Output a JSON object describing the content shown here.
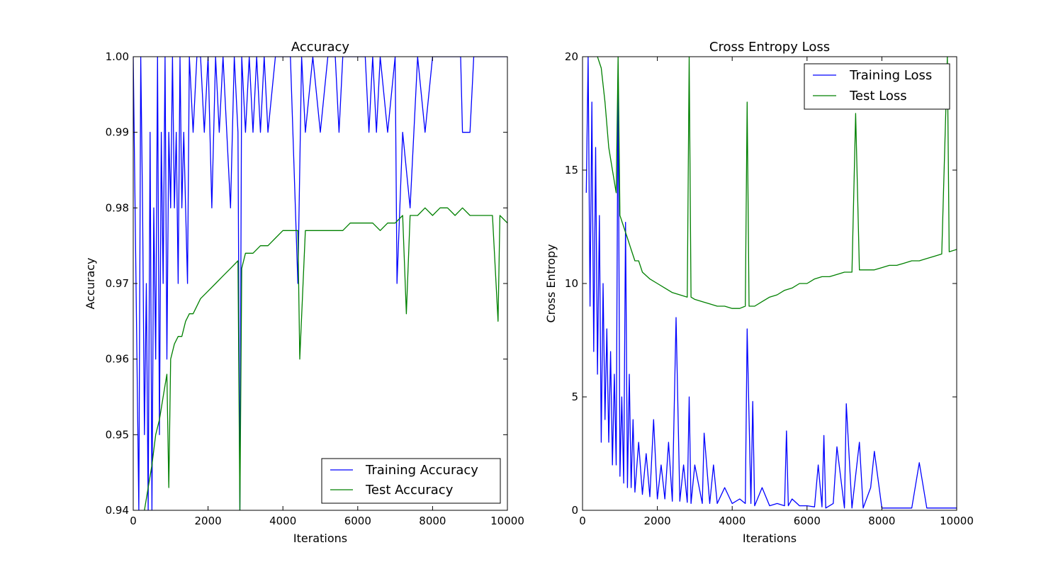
{
  "chart_data": [
    {
      "type": "line",
      "title": "Accuracy",
      "xlabel": "Iterations",
      "ylabel": "Accuracy",
      "xlim": [
        0,
        10000
      ],
      "ylim": [
        0.94,
        1.0
      ],
      "x_ticks": [
        "0",
        "2000",
        "4000",
        "6000",
        "8000",
        "10000"
      ],
      "y_ticks": [
        "0.94",
        "0.95",
        "0.96",
        "0.97",
        "0.98",
        "0.99",
        "1.00"
      ],
      "grid": false,
      "legend_position": "lower-right",
      "series": [
        {
          "name": "Training Accuracy",
          "color": "#0000ff",
          "x": [
            0,
            150,
            200,
            250,
            300,
            350,
            400,
            450,
            500,
            550,
            600,
            650,
            700,
            750,
            800,
            850,
            900,
            950,
            1000,
            1050,
            1100,
            1150,
            1200,
            1250,
            1300,
            1350,
            1400,
            1450,
            1500,
            1600,
            1700,
            1800,
            1900,
            2000,
            2100,
            2200,
            2300,
            2400,
            2500,
            2600,
            2700,
            2800,
            2850,
            2900,
            3000,
            3100,
            3200,
            3300,
            3400,
            3500,
            3600,
            3800,
            4000,
            4200,
            4400,
            4500,
            4600,
            4800,
            5000,
            5200,
            5400,
            5500,
            5600,
            5800,
            6000,
            6200,
            6300,
            6400,
            6500,
            6600,
            6800,
            7000,
            7050,
            7200,
            7400,
            7600,
            7800,
            8000,
            8200,
            8400,
            8600,
            8750,
            8800,
            9000,
            9100,
            9300,
            9500,
            9700,
            10000
          ],
          "y": [
            1.0,
            0.94,
            1.0,
            0.98,
            0.95,
            0.97,
            0.94,
            0.99,
            0.94,
            0.98,
            0.96,
            1.0,
            0.95,
            0.99,
            0.97,
            1.0,
            0.96,
            0.99,
            0.98,
            1.0,
            0.98,
            0.99,
            0.97,
            1.0,
            0.98,
            0.99,
            0.98,
            0.97,
            1.0,
            0.99,
            1.0,
            1.0,
            0.99,
            1.0,
            0.98,
            1.0,
            0.99,
            1.0,
            0.99,
            0.98,
            1.0,
            0.99,
            0.94,
            1.0,
            0.99,
            1.0,
            0.99,
            1.0,
            0.99,
            1.0,
            0.99,
            1.0,
            1.0,
            1.0,
            0.97,
            1.0,
            0.99,
            1.0,
            0.99,
            1.0,
            1.0,
            0.99,
            1.0,
            1.0,
            1.0,
            1.0,
            0.99,
            1.0,
            0.99,
            1.0,
            0.99,
            1.0,
            0.97,
            0.99,
            0.98,
            1.0,
            0.99,
            1.0,
            1.0,
            1.0,
            1.0,
            1.0,
            0.99,
            0.99,
            1.0,
            1.0,
            1.0,
            1.0,
            1.0
          ]
        },
        {
          "name": "Test Accuracy",
          "color": "#008000",
          "x": [
            300,
            400,
            500,
            600,
            700,
            800,
            900,
            950,
            1000,
            1100,
            1200,
            1300,
            1400,
            1500,
            1600,
            1800,
            2000,
            2200,
            2400,
            2600,
            2800,
            2850,
            2900,
            3000,
            3200,
            3400,
            3600,
            3800,
            4000,
            4200,
            4400,
            4450,
            4600,
            4800,
            5000,
            5200,
            5400,
            5600,
            5800,
            6000,
            6200,
            6400,
            6600,
            6800,
            7000,
            7200,
            7300,
            7400,
            7600,
            7800,
            8000,
            8200,
            8400,
            8600,
            8800,
            9000,
            9200,
            9400,
            9600,
            9750,
            9800,
            10000
          ],
          "y": [
            0.94,
            0.943,
            0.946,
            0.95,
            0.952,
            0.955,
            0.958,
            0.943,
            0.96,
            0.962,
            0.963,
            0.963,
            0.965,
            0.966,
            0.966,
            0.968,
            0.969,
            0.97,
            0.971,
            0.972,
            0.973,
            0.94,
            0.972,
            0.974,
            0.974,
            0.975,
            0.975,
            0.976,
            0.977,
            0.977,
            0.977,
            0.96,
            0.977,
            0.977,
            0.977,
            0.977,
            0.977,
            0.977,
            0.978,
            0.978,
            0.978,
            0.978,
            0.977,
            0.978,
            0.978,
            0.979,
            0.966,
            0.979,
            0.979,
            0.98,
            0.979,
            0.98,
            0.98,
            0.979,
            0.98,
            0.979,
            0.979,
            0.979,
            0.979,
            0.965,
            0.979,
            0.978
          ]
        }
      ]
    },
    {
      "type": "line",
      "title": "Cross Entropy Loss",
      "xlabel": "Iterations",
      "ylabel": "Cross Entropy",
      "xlim": [
        0,
        10000
      ],
      "ylim": [
        0,
        20
      ],
      "x_ticks": [
        "0",
        "2000",
        "4000",
        "6000",
        "8000",
        "10000"
      ],
      "y_ticks": [
        "0",
        "5",
        "10",
        "15",
        "20"
      ],
      "grid": false,
      "legend_position": "upper-right",
      "series": [
        {
          "name": "Training Loss",
          "color": "#0000ff",
          "x": [
            100,
            150,
            200,
            250,
            300,
            350,
            400,
            450,
            500,
            550,
            600,
            650,
            700,
            750,
            800,
            850,
            900,
            950,
            1000,
            1050,
            1100,
            1150,
            1200,
            1250,
            1300,
            1350,
            1400,
            1500,
            1600,
            1700,
            1800,
            1900,
            2000,
            2100,
            2200,
            2300,
            2400,
            2500,
            2600,
            2700,
            2800,
            2850,
            2900,
            3000,
            3200,
            3250,
            3400,
            3500,
            3600,
            3800,
            4000,
            4200,
            4350,
            4400,
            4500,
            4550,
            4600,
            4800,
            5000,
            5200,
            5400,
            5450,
            5500,
            5600,
            5800,
            6000,
            6200,
            6300,
            6400,
            6450,
            6500,
            6700,
            6800,
            7000,
            7050,
            7200,
            7400,
            7500,
            7700,
            7800,
            8000,
            8200,
            8400,
            8600,
            8800,
            9000,
            9200,
            9400,
            9600,
            9800,
            10000
          ],
          "y": [
            14,
            20,
            9,
            18,
            7,
            16,
            6,
            13,
            3,
            10,
            4,
            8,
            3,
            7,
            2,
            6,
            2,
            19.6,
            1.5,
            5,
            1.2,
            12.7,
            1.0,
            6,
            1.0,
            4,
            0.8,
            3,
            0.7,
            2.5,
            0.6,
            4,
            0.5,
            2,
            0.5,
            3,
            0.4,
            8.5,
            0.4,
            2,
            0.35,
            5,
            0.3,
            2,
            0.3,
            3.4,
            0.3,
            2,
            0.3,
            1,
            0.3,
            0.5,
            0.3,
            8.0,
            0.3,
            4.8,
            0.2,
            1,
            0.2,
            0.3,
            0.2,
            3.5,
            0.2,
            0.5,
            0.2,
            0.2,
            0.15,
            2,
            0.15,
            3.3,
            0.1,
            0.3,
            2.8,
            0.1,
            4.7,
            0.1,
            3,
            0.1,
            1,
            2.6,
            0.1,
            0.1,
            0.1,
            0.1,
            0.1,
            2.1,
            0.1,
            0.1,
            0.1,
            0.1,
            0.1
          ]
        },
        {
          "name": "Test Loss",
          "color": "#008000",
          "x": [
            400,
            500,
            600,
            700,
            800,
            900,
            950,
            1000,
            1100,
            1200,
            1300,
            1400,
            1500,
            1600,
            1800,
            2000,
            2200,
            2400,
            2600,
            2800,
            2850,
            2900,
            3000,
            3200,
            3400,
            3600,
            3800,
            4000,
            4200,
            4350,
            4400,
            4450,
            4600,
            4800,
            5000,
            5200,
            5400,
            5600,
            5800,
            6000,
            6200,
            6400,
            6600,
            6800,
            7000,
            7200,
            7300,
            7400,
            7600,
            7800,
            8000,
            8200,
            8400,
            8600,
            8800,
            9000,
            9200,
            9400,
            9600,
            9750,
            9800,
            10000
          ],
          "y": [
            20,
            19.5,
            18,
            16,
            15,
            14,
            20,
            13,
            12.5,
            12,
            11.5,
            11,
            11,
            10.5,
            10.2,
            10,
            9.8,
            9.6,
            9.5,
            9.4,
            20,
            9.4,
            9.3,
            9.2,
            9.1,
            9.0,
            9.0,
            8.9,
            8.9,
            9.0,
            18,
            9.0,
            9.0,
            9.2,
            9.4,
            9.5,
            9.7,
            9.8,
            10.0,
            10.0,
            10.2,
            10.3,
            10.3,
            10.4,
            10.5,
            10.5,
            17.5,
            10.6,
            10.6,
            10.6,
            10.7,
            10.8,
            10.8,
            10.9,
            11.0,
            11.0,
            11.1,
            11.2,
            11.3,
            20,
            11.4,
            11.5
          ]
        }
      ]
    }
  ]
}
